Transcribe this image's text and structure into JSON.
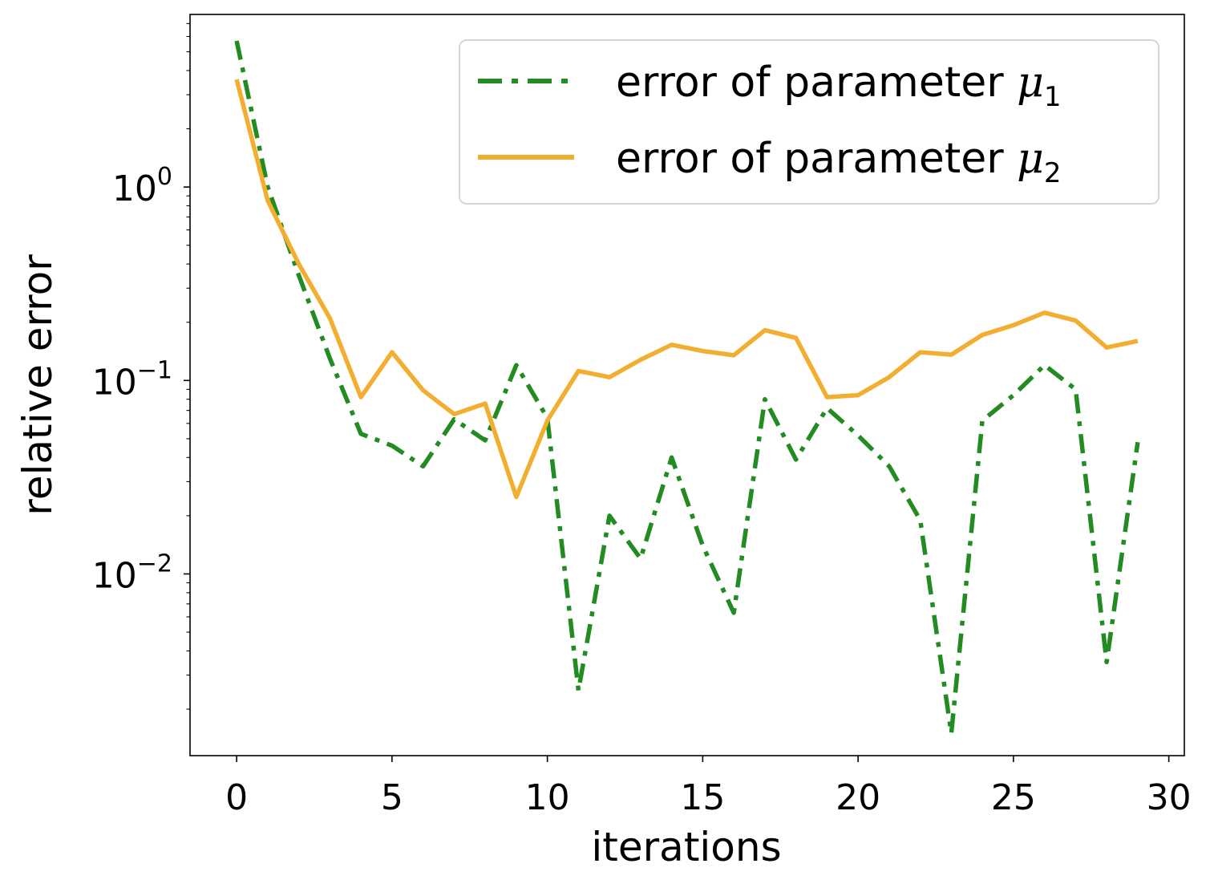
{
  "chart_data": {
    "type": "line",
    "xlabel": "iterations",
    "ylabel": "relative error",
    "xlim": [
      -1.5,
      30.5
    ],
    "ylim": [
      0.00115,
      7.8
    ],
    "yscale": "log",
    "grid": false,
    "legend_position": "top-right",
    "xticks": [
      0,
      5,
      10,
      15,
      20,
      25,
      30
    ],
    "xtick_labels": [
      "0",
      "5",
      "10",
      "15",
      "20",
      "25",
      "30"
    ],
    "yticks": [
      {
        "value": 1,
        "base": "10",
        "exp": "0"
      },
      {
        "value": 0.1,
        "base": "10",
        "exp": "−1"
      },
      {
        "value": 0.01,
        "base": "10",
        "exp": "−2"
      }
    ],
    "series": [
      {
        "name": "error of parameter μ1",
        "legend_label": "error of parameter ",
        "legend_symbol": "μ",
        "legend_subscript": "1",
        "color": "#228B22",
        "style": "dashdot",
        "x": [
          0,
          1,
          2,
          3,
          4,
          5,
          6,
          7,
          8,
          9,
          10,
          11,
          12,
          13,
          14,
          15,
          16,
          17,
          18,
          19,
          20,
          21,
          22,
          23,
          24,
          25,
          26,
          27,
          28,
          29
        ],
        "values": [
          5.7,
          1.0,
          0.35,
          0.13,
          0.053,
          0.046,
          0.036,
          0.063,
          0.049,
          0.12,
          0.064,
          0.0025,
          0.02,
          0.012,
          0.04,
          0.014,
          0.0063,
          0.08,
          0.039,
          0.072,
          0.052,
          0.036,
          0.019,
          0.0015,
          0.062,
          0.084,
          0.12,
          0.09,
          0.0035,
          0.048
        ]
      },
      {
        "name": "error of parameter μ2",
        "legend_label": "error of parameter ",
        "legend_symbol": "μ",
        "legend_subscript": "2",
        "color": "#F2AE30",
        "style": "solid",
        "x": [
          0,
          1,
          2,
          3,
          4,
          5,
          6,
          7,
          8,
          9,
          10,
          11,
          12,
          13,
          14,
          15,
          16,
          17,
          18,
          19,
          20,
          21,
          22,
          23,
          24,
          25,
          26,
          27,
          28,
          29
        ],
        "values": [
          3.6,
          0.85,
          0.4,
          0.21,
          0.082,
          0.14,
          0.089,
          0.067,
          0.076,
          0.025,
          0.062,
          0.112,
          0.104,
          0.128,
          0.153,
          0.142,
          0.135,
          0.182,
          0.166,
          0.082,
          0.084,
          0.104,
          0.14,
          0.136,
          0.172,
          0.193,
          0.224,
          0.204,
          0.148,
          0.16
        ]
      }
    ]
  }
}
